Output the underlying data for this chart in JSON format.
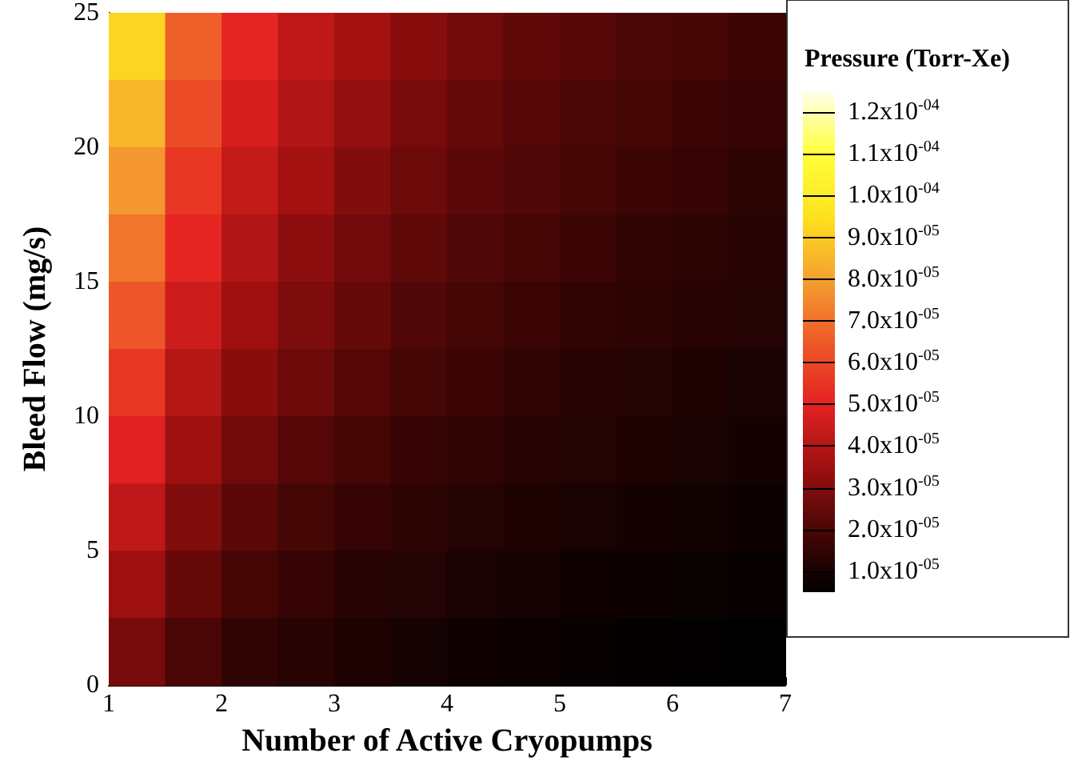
{
  "chart_data": {
    "type": "heatmap",
    "xlabel": "Number of Active Cryopumps",
    "ylabel": "Bleed Flow (mg/s)",
    "clabel": "Pressure (Torr-Xe)",
    "xlim": [
      1,
      7
    ],
    "xticks": [
      1,
      2,
      3,
      4,
      5,
      6,
      7
    ],
    "ylim": [
      0,
      25
    ],
    "yticks": [
      0,
      5,
      10,
      15,
      20,
      25
    ],
    "cells": [
      [
        9.2e-05,
        6.6e-05,
        5.1e-05,
        4.2e-05,
        3.6e-05,
        3.1e-05,
        2.7e-05,
        2.4e-05,
        2.2e-05,
        2e-05,
        1.9e-05,
        1.7e-05
      ],
      [
        8.5e-05,
        6.1e-05,
        4.7e-05,
        3.9e-05,
        3.3e-05,
        2.8e-05,
        2.5e-05,
        2.2e-05,
        2e-05,
        1.9e-05,
        1.7e-05,
        1.6e-05
      ],
      [
        7.8e-05,
        5.6e-05,
        4.3e-05,
        3.6e-05,
        3e-05,
        2.6e-05,
        2.3e-05,
        2.1e-05,
        1.9e-05,
        1.7e-05,
        1.6e-05,
        1.4e-05
      ],
      [
        7.1e-05,
        5.1e-05,
        3.9e-05,
        3.2e-05,
        2.7e-05,
        2.4e-05,
        2.1e-05,
        1.9e-05,
        1.7e-05,
        1.5e-05,
        1.4e-05,
        1.3e-05
      ],
      [
        6.4e-05,
        4.5e-05,
        3.5e-05,
        2.9e-05,
        2.5e-05,
        2.1e-05,
        1.9e-05,
        1.7e-05,
        1.5e-05,
        1.4e-05,
        1.3e-05,
        1.2e-05
      ],
      [
        5.6e-05,
        4e-05,
        3.1e-05,
        2.6e-05,
        2.2e-05,
        1.9e-05,
        1.7e-05,
        1.5e-05,
        1.3e-05,
        1.2e-05,
        1.1e-05,
        1e-05
      ],
      [
        4.9e-05,
        3.5e-05,
        2.7e-05,
        2.2e-05,
        1.9e-05,
        1.6e-05,
        1.5e-05,
        1.3e-05,
        1.2e-05,
        1.1e-05,
        9.8e-06,
        9.1e-06
      ],
      [
        4.2e-05,
        3e-05,
        2.3e-05,
        1.9e-05,
        1.6e-05,
        1.4e-05,
        1.2e-05,
        1.1e-05,
        1e-05,
        9.1e-06,
        8.4e-06,
        7.8e-06
      ],
      [
        3.5e-05,
        2.5e-05,
        1.9e-05,
        1.6e-05,
        1.3e-05,
        1.2e-05,
        1e-05,
        9.2e-06,
        8.3e-06,
        7.6e-06,
        7e-06,
        6.4e-06
      ],
      [
        2.8e-05,
        2e-05,
        1.5e-05,
        1.3e-05,
        1.1e-05,
        9.2e-06,
        8.1e-06,
        7.3e-06,
        6.6e-06,
        6e-06,
        5.5e-06,
        5.1e-06
      ]
    ],
    "clim": [
      5e-06,
      0.000125
    ],
    "cticks": [
      {
        "value": 1e-05,
        "label": "1.0x10$^{-05}$"
      },
      {
        "value": 2e-05,
        "label": "2.0x10$^{-05}$"
      },
      {
        "value": 3e-05,
        "label": "3.0x10$^{-05}$"
      },
      {
        "value": 4e-05,
        "label": "4.0x10$^{-05}$"
      },
      {
        "value": 5e-05,
        "label": "5.0x10$^{-05}$"
      },
      {
        "value": 6e-05,
        "label": "6.0x10$^{-05}$"
      },
      {
        "value": 7e-05,
        "label": "7.0x10$^{-05}$"
      },
      {
        "value": 8e-05,
        "label": "8.0x10$^{-05}$"
      },
      {
        "value": 9e-05,
        "label": "9.0x10$^{-05}$"
      },
      {
        "value": 0.0001,
        "label": "1.0x10$^{-04}$"
      },
      {
        "value": 0.00011,
        "label": "1.1x10$^{-04}$"
      },
      {
        "value": 0.00012,
        "label": "1.2x10$^{-04}$"
      }
    ]
  }
}
